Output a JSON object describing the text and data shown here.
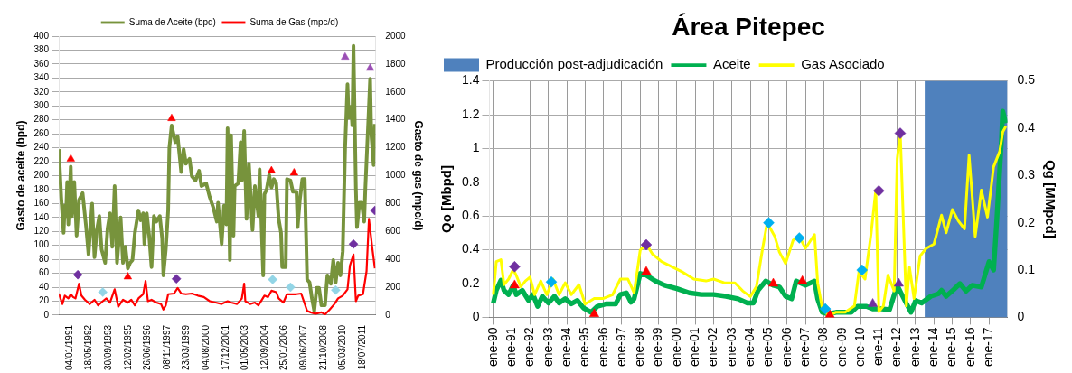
{
  "chart_data": [
    {
      "type": "line",
      "ylabel": "Gasto de aceite (bpd)",
      "y2label": "Gasto de gas (mpc/d)",
      "grid": "y",
      "legend": "top",
      "xlim": [
        "1990-04-01",
        "2012-06-15"
      ],
      "xticks": [
        {
          "value": "1991-01-04",
          "label": "04/01/1991"
        },
        {
          "value": "1992-05-18",
          "label": "18/05/1992"
        },
        {
          "value": "1993-09-30",
          "label": "30/09/1993"
        },
        {
          "value": "1995-02-12",
          "label": "12/02/1995"
        },
        {
          "value": "1996-06-26",
          "label": "26/06/1996"
        },
        {
          "value": "1997-11-08",
          "label": "08/11/1997"
        },
        {
          "value": "1999-03-23",
          "label": "23/03/1999"
        },
        {
          "value": "2000-08-04",
          "label": "04/08/2000"
        },
        {
          "value": "2001-12-17",
          "label": "17/12/2001"
        },
        {
          "value": "2003-05-01",
          "label": "01/05/2003"
        },
        {
          "value": "2004-09-12",
          "label": "12/09/2004"
        },
        {
          "value": "2006-01-25",
          "label": "25/01/2006"
        },
        {
          "value": "2007-06-09",
          "label": "09/06/2007"
        },
        {
          "value": "2008-10-21",
          "label": "21/10/2008"
        },
        {
          "value": "2010-03-05",
          "label": "05/03/2010"
        },
        {
          "value": "2011-07-18",
          "label": "18/07/2011"
        }
      ],
      "ylim": [
        0,
        400
      ],
      "yticks": [
        0,
        20,
        40,
        60,
        80,
        100,
        120,
        140,
        160,
        180,
        200,
        220,
        240,
        260,
        280,
        300,
        320,
        340,
        360,
        380,
        400
      ],
      "y2lim": [
        0,
        2000
      ],
      "y2ticks": [
        0,
        200,
        400,
        600,
        800,
        1000,
        1200,
        1400,
        1600,
        1800,
        2000
      ],
      "series": [
        {
          "name": "Suma de Aceite (bpd)",
          "type": "line",
          "marker": "none",
          "color": "#77933c",
          "x": [
            "1990-04",
            "1990-06",
            "1990-08",
            "1990-09",
            "1990-10",
            "1990-11",
            "1990-12",
            "1991-02",
            "1991-03",
            "1991-05",
            "1991-07",
            "1991-09",
            "1991-12",
            "1992-03",
            "1992-05",
            "1992-08",
            "1992-10",
            "1992-12",
            "1993-02",
            "1993-04",
            "1993-07",
            "1993-09",
            "1993-11",
            "1994-01",
            "1994-03",
            "1994-05",
            "1994-08",
            "1994-10",
            "1994-12",
            "1995-02",
            "1995-04",
            "1995-06",
            "1995-08",
            "1995-11",
            "1996-01",
            "1996-03",
            "1996-04",
            "1996-06",
            "1996-08",
            "1996-10",
            "1996-12",
            "1997-02",
            "1997-05",
            "1997-07",
            "1997-08",
            "1997-10",
            "1997-12",
            "1998-01",
            "1998-03",
            "1998-06",
            "1998-08",
            "1998-11",
            "1999-01",
            "1999-03",
            "1999-06",
            "1999-08",
            "1999-11",
            "2000-02",
            "2000-04",
            "2000-08",
            "2000-11",
            "2001-02",
            "2001-05",
            "2001-06",
            "2001-09",
            "2001-11",
            "2002-01",
            "2002-02",
            "2002-04",
            "2002-05",
            "2002-07",
            "2002-08",
            "2002-11",
            "2003-01",
            "2003-02",
            "2003-04",
            "2003-06",
            "2003-08",
            "2003-11",
            "2004-01",
            "2004-04",
            "2004-05",
            "2004-08",
            "2004-09",
            "2004-11",
            "2005-01",
            "2005-03",
            "2005-05",
            "2005-07",
            "2005-09",
            "2005-11",
            "2005-12",
            "2006-03",
            "2006-04",
            "2006-07",
            "2006-09",
            "2006-12",
            "2007-01",
            "2007-03",
            "2007-05",
            "2007-07",
            "2007-09",
            "2007-11",
            "2008-01",
            "2008-03",
            "2008-05",
            "2008-07",
            "2008-09",
            "2008-12",
            "2009-02",
            "2009-05",
            "2009-07",
            "2009-09",
            "2009-11",
            "2010-01",
            "2010-03",
            "2010-05",
            "2010-07",
            "2010-08",
            "2010-10",
            "2010-11",
            "2010-12",
            "2011-02",
            "2011-03",
            "2011-05",
            "2011-07",
            "2011-09",
            "2011-10",
            "2012-01",
            "2012-02",
            "2012-03",
            "2012-05",
            "2012-06"
          ],
          "values": [
            238,
            169,
            118,
            157,
            142,
            191,
            130,
            213,
            142,
            191,
            114,
            165,
            175,
            126,
            87,
            160,
            83,
            122,
            142,
            94,
            75,
            124,
            146,
            98,
            185,
            75,
            140,
            75,
            98,
            67,
            75,
            79,
            118,
            150,
            136,
            146,
            102,
            146,
            114,
            69,
            142,
            134,
            142,
            110,
            57,
            94,
            150,
            240,
            272,
            248,
            256,
            205,
            238,
            217,
            224,
            199,
            193,
            207,
            185,
            189,
            169,
            154,
            134,
            161,
            102,
            157,
            130,
            268,
            79,
            258,
            114,
            185,
            189,
            248,
            193,
            264,
            138,
            217,
            122,
            185,
            142,
            209,
            57,
            173,
            181,
            201,
            183,
            195,
            189,
            138,
            118,
            69,
            69,
            195,
            193,
            177,
            177,
            126,
            167,
            195,
            195,
            51,
            47,
            24,
            6,
            39,
            39,
            14,
            14,
            57,
            45,
            79,
            47,
            75,
            57,
            91,
            240,
            331,
            283,
            299,
            272,
            386,
            181,
            126,
            161,
            161,
            134,
            181,
            299,
            339,
            260,
            215,
            274
          ]
        },
        {
          "name": "Suma de Gas (mpc/d)",
          "type": "line",
          "marker": "none",
          "axis": "y2",
          "color": "#ff0000",
          "x": [
            "1990-04",
            "1990-07",
            "1990-09",
            "1990-12",
            "1991-02",
            "1991-04",
            "1991-06",
            "1991-09",
            "1991-11",
            "1992-02",
            "1992-06",
            "1992-10",
            "1993-01",
            "1993-05",
            "1993-08",
            "1993-11",
            "1994-03",
            "1994-06",
            "1994-10",
            "1995-02",
            "1995-05",
            "1995-08",
            "1995-11",
            "1996-03",
            "1996-05",
            "1996-07",
            "1996-10",
            "1997-02",
            "1997-06",
            "1997-08",
            "1997-10",
            "1997-12",
            "1998-05",
            "1998-08",
            "1998-11",
            "1999-03",
            "1999-08",
            "2000-01",
            "2000-06",
            "2000-11",
            "2001-04",
            "2001-09",
            "2002-02",
            "2002-05",
            "2002-10",
            "2003-02",
            "2003-04",
            "2003-05",
            "2003-09",
            "2004-01",
            "2004-04",
            "2004-09",
            "2004-12",
            "2005-03",
            "2005-07",
            "2005-09",
            "2006-01",
            "2006-04",
            "2006-12",
            "2007-04",
            "2007-09",
            "2007-12",
            "2008-04",
            "2008-09",
            "2008-12",
            "2009-04",
            "2009-08",
            "2009-11",
            "2010-03",
            "2010-07",
            "2010-09",
            "2010-12",
            "2011-02",
            "2011-04",
            "2011-08",
            "2011-11",
            "2012-01",
            "2012-04",
            "2012-06"
          ],
          "values": [
            155,
            80,
            140,
            120,
            150,
            130,
            120,
            225,
            140,
            110,
            80,
            110,
            70,
            100,
            120,
            90,
            185,
            60,
            110,
            90,
            110,
            70,
            120,
            150,
            245,
            100,
            110,
            90,
            80,
            40,
            70,
            150,
            155,
            195,
            155,
            150,
            155,
            140,
            130,
            100,
            90,
            80,
            100,
            90,
            80,
            120,
            225,
            100,
            80,
            90,
            70,
            140,
            130,
            175,
            165,
            120,
            90,
            150,
            150,
            155,
            30,
            20,
            10,
            20,
            5,
            40,
            80,
            120,
            140,
            185,
            355,
            435,
            100,
            140,
            150,
            315,
            690,
            470,
            335
          ]
        },
        {
          "type": "scatter",
          "marker": "triangle",
          "color": "#ff0000",
          "x": [
            "1991-02",
            "1995-02",
            "1998-03",
            "2005-03",
            "2006-10"
          ],
          "values": [
            224,
            55,
            282,
            207,
            204
          ]
        },
        {
          "type": "scatter",
          "marker": "diamond",
          "color": "#7030a0",
          "x": [
            "1991-08",
            "1998-07",
            "2010-12",
            "2012-06"
          ],
          "values": [
            58,
            52,
            102,
            150
          ]
        },
        {
          "type": "scatter",
          "marker": "diamond",
          "color": "#92d5e6",
          "x": [
            "1993-05",
            "2005-04",
            "2006-07",
            "2009-09"
          ],
          "values": [
            33,
            51,
            40,
            36
          ]
        },
        {
          "type": "scatter",
          "marker": "triangle",
          "color": "#9b4fb5",
          "x": [
            "2010-05",
            "2012-02"
          ],
          "values": [
            370,
            354
          ]
        }
      ]
    },
    {
      "type": "line",
      "title": "Área Pitepec",
      "ylabel": "Qo [Mbpd]",
      "y2label": "Qg [MMpcd]",
      "grid": true,
      "legend": "top left",
      "xlim": [
        "1989-10-15",
        "2018-01"
      ],
      "xticks": [
        {
          "value": "1990-01",
          "label": "ene-90"
        },
        {
          "value": "1991-01",
          "label": "ene-91"
        },
        {
          "value": "1992-01",
          "label": "ene-92"
        },
        {
          "value": "1993-01",
          "label": "ene-93"
        },
        {
          "value": "1994-01",
          "label": "ene-94"
        },
        {
          "value": "1995-01",
          "label": "ene-95"
        },
        {
          "value": "1996-01",
          "label": "ene-96"
        },
        {
          "value": "1997-01",
          "label": "ene-97"
        },
        {
          "value": "1998-01",
          "label": "ene-98"
        },
        {
          "value": "1999-01",
          "label": "ene-99"
        },
        {
          "value": "2000-01",
          "label": "ene-00"
        },
        {
          "value": "2001-01",
          "label": "ene-01"
        },
        {
          "value": "2002-01",
          "label": "ene-02"
        },
        {
          "value": "2003-01",
          "label": "ene-03"
        },
        {
          "value": "2004-01",
          "label": "ene-04"
        },
        {
          "value": "2005-01",
          "label": "ene-05"
        },
        {
          "value": "2006-01",
          "label": "ene-06"
        },
        {
          "value": "2007-01",
          "label": "ene-07"
        },
        {
          "value": "2008-01",
          "label": "ene-08"
        },
        {
          "value": "2009-01",
          "label": "ene-09"
        },
        {
          "value": "2010-01",
          "label": "ene-10"
        },
        {
          "value": "2011-01",
          "label": "ene-11"
        },
        {
          "value": "2012-01",
          "label": "ene-12"
        },
        {
          "value": "2013-01",
          "label": "ene-13"
        },
        {
          "value": "2014-01",
          "label": "ene-14"
        },
        {
          "value": "2015-01",
          "label": "ene-15"
        },
        {
          "value": "2016-01",
          "label": "ene-16"
        },
        {
          "value": "2017-01",
          "label": "ene-17"
        }
      ],
      "ylim": [
        0,
        1.4
      ],
      "yticks": [
        0,
        0.2,
        0.4,
        0.6,
        0.8,
        1,
        1.2,
        1.4
      ],
      "y2lim": [
        0,
        0.5
      ],
      "y2ticks": [
        0,
        0.1,
        0.2,
        0.3,
        0.4,
        0.5
      ],
      "bands": [
        {
          "axis": "x",
          "from": "2013-07",
          "to": "2018-01",
          "label": "Producción post-adjudicación",
          "color": "#4f81bd"
        }
      ],
      "series": [
        {
          "name": "Aceite",
          "type": "line",
          "marker": "none",
          "color": "#00b050",
          "x": [
            "1990-01",
            "1990-03",
            "1990-06",
            "1990-08",
            "1990-11",
            "1991-02",
            "1991-04",
            "1991-08",
            "1991-12",
            "1992-03",
            "1992-06",
            "1992-09",
            "1993-01",
            "1993-05",
            "1993-08",
            "1993-12",
            "1994-04",
            "1994-08",
            "1994-12",
            "1995-05",
            "1995-09",
            "1996-03",
            "1996-09",
            "1996-12",
            "1997-04",
            "1997-07",
            "1997-09",
            "1998-01",
            "1998-05",
            "1998-11",
            "1999-05",
            "2000-01",
            "2000-09",
            "2001-05",
            "2002-01",
            "2002-09",
            "2003-05",
            "2003-11",
            "2004-03",
            "2004-06",
            "2004-11",
            "2005-04",
            "2005-08",
            "2005-12",
            "2006-04",
            "2006-07",
            "2007-01",
            "2007-07",
            "2007-09",
            "2007-12",
            "2008-04",
            "2008-09",
            "2009-01",
            "2009-07",
            "2009-11",
            "2010-05",
            "2010-09",
            "2011-03",
            "2011-08",
            "2012-01",
            "2012-04",
            "2012-08",
            "2012-10",
            "2013-01",
            "2013-05",
            "2013-11",
            "2014-04",
            "2014-06",
            "2014-09",
            "2015-02",
            "2015-06",
            "2015-10",
            "2016-02",
            "2016-08",
            "2017-01",
            "2017-04",
            "2017-06",
            "2017-09",
            "2017-10",
            "2017-12"
          ],
          "values": [
            0.085,
            0.16,
            0.22,
            0.16,
            0.135,
            0.19,
            0.135,
            0.16,
            0.1,
            0.135,
            0.065,
            0.125,
            0.085,
            0.125,
            0.085,
            0.11,
            0.08,
            0.1,
            0.055,
            0.03,
            0.065,
            0.08,
            0.08,
            0.135,
            0.145,
            0.09,
            0.11,
            0.26,
            0.25,
            0.215,
            0.19,
            0.17,
            0.145,
            0.135,
            0.135,
            0.125,
            0.11,
            0.085,
            0.085,
            0.16,
            0.215,
            0.19,
            0.18,
            0.125,
            0.11,
            0.215,
            0.19,
            0.215,
            0.11,
            0.03,
            0.02,
            0.03,
            0.03,
            0.03,
            0.065,
            0.065,
            0.05,
            0.05,
            0.045,
            0.19,
            0.135,
            0.065,
            0.03,
            0.1,
            0.085,
            0.125,
            0.14,
            0.16,
            0.125,
            0.165,
            0.2,
            0.155,
            0.19,
            0.18,
            0.33,
            0.28,
            0.56,
            1.03,
            1.22,
            1.15
          ]
        },
        {
          "name": "Gas Asociado",
          "type": "line",
          "marker": "none",
          "axis": "y2",
          "color": "#ffff00",
          "x": [
            "1990-01",
            "1990-03",
            "1990-06",
            "1990-08",
            "1990-11",
            "1991-02",
            "1991-04",
            "1991-07",
            "1991-10",
            "1992-01",
            "1992-04",
            "1992-08",
            "1992-12",
            "1993-04",
            "1993-08",
            "1993-12",
            "1994-04",
            "1994-09",
            "1995-01",
            "1995-07",
            "1996-01",
            "1996-07",
            "1996-12",
            "1997-05",
            "1997-09",
            "1998-01",
            "1998-05",
            "1998-09",
            "1999-03",
            "1999-08",
            "2000-04",
            "2000-12",
            "2001-08",
            "2002-01",
            "2002-08",
            "2003-03",
            "2003-08",
            "2004-01",
            "2004-05",
            "2004-09",
            "2004-12",
            "2005-05",
            "2005-08",
            "2005-12",
            "2006-05",
            "2006-09",
            "2007-01",
            "2007-07",
            "2007-09",
            "2007-12",
            "2008-04",
            "2008-09",
            "2009-03",
            "2009-09",
            "2009-12",
            "2010-04",
            "2010-08",
            "2010-11",
            "2011-01",
            "2011-04",
            "2011-07",
            "2011-11",
            "2012-01",
            "2012-03",
            "2012-07",
            "2012-09",
            "2012-12",
            "2013-04",
            "2013-08",
            "2014-01",
            "2014-06",
            "2014-09",
            "2015-01",
            "2015-05",
            "2015-09",
            "2015-12",
            "2016-04",
            "2016-08",
            "2016-12",
            "2017-04",
            "2017-08",
            "2017-10",
            "2017-12"
          ],
          "values": [
            0.048,
            0.118,
            0.122,
            0.069,
            0.081,
            0.101,
            0.089,
            0.065,
            0.077,
            0.085,
            0.048,
            0.077,
            0.048,
            0.081,
            0.048,
            0.073,
            0.048,
            0.069,
            0.028,
            0.04,
            0.04,
            0.048,
            0.081,
            0.081,
            0.052,
            0.142,
            0.155,
            0.134,
            0.118,
            0.11,
            0.097,
            0.081,
            0.077,
            0.081,
            0.073,
            0.073,
            0.056,
            0.044,
            0.065,
            0.146,
            0.2,
            0.171,
            0.138,
            0.114,
            0.163,
            0.171,
            0.146,
            0.175,
            0.073,
            0.02,
            0.003,
            0.011,
            0.011,
            0.024,
            0.097,
            0.081,
            0.179,
            0.269,
            0.012,
            0.024,
            0.089,
            0.056,
            0.335,
            0.392,
            0.024,
            0.106,
            0.04,
            0.13,
            0.146,
            0.155,
            0.216,
            0.179,
            0.228,
            0.204,
            0.187,
            0.343,
            0.171,
            0.269,
            0.212,
            0.318,
            0.351,
            0.392,
            0.404
          ]
        },
        {
          "type": "scatter",
          "marker": "diamond",
          "color": "#7030a0",
          "x": [
            "1991-03",
            "1998-05",
            "2011-01",
            "2012-03"
          ],
          "values": [
            0.3,
            0.43,
            0.75,
            1.09
          ]
        },
        {
          "type": "scatter",
          "marker": "diamond",
          "color": "#00b0f0",
          "x": [
            "1993-03",
            "2005-01",
            "2006-09",
            "2008-02",
            "2010-02"
          ],
          "values": [
            0.21,
            0.56,
            0.47,
            0.05,
            0.28
          ]
        },
        {
          "type": "scatter",
          "marker": "triangle",
          "color": "#ff0000",
          "x": [
            "1991-03",
            "1995-07",
            "1998-05",
            "2005-04",
            "2006-11",
            "2008-05"
          ],
          "values": [
            0.19,
            0.02,
            0.27,
            0.2,
            0.215,
            0.014
          ]
        },
        {
          "type": "scatter",
          "marker": "triangle",
          "color": "#7030a0",
          "x": [
            "2010-09",
            "2012-02"
          ],
          "values": [
            0.08,
            0.2
          ]
        }
      ]
    }
  ]
}
